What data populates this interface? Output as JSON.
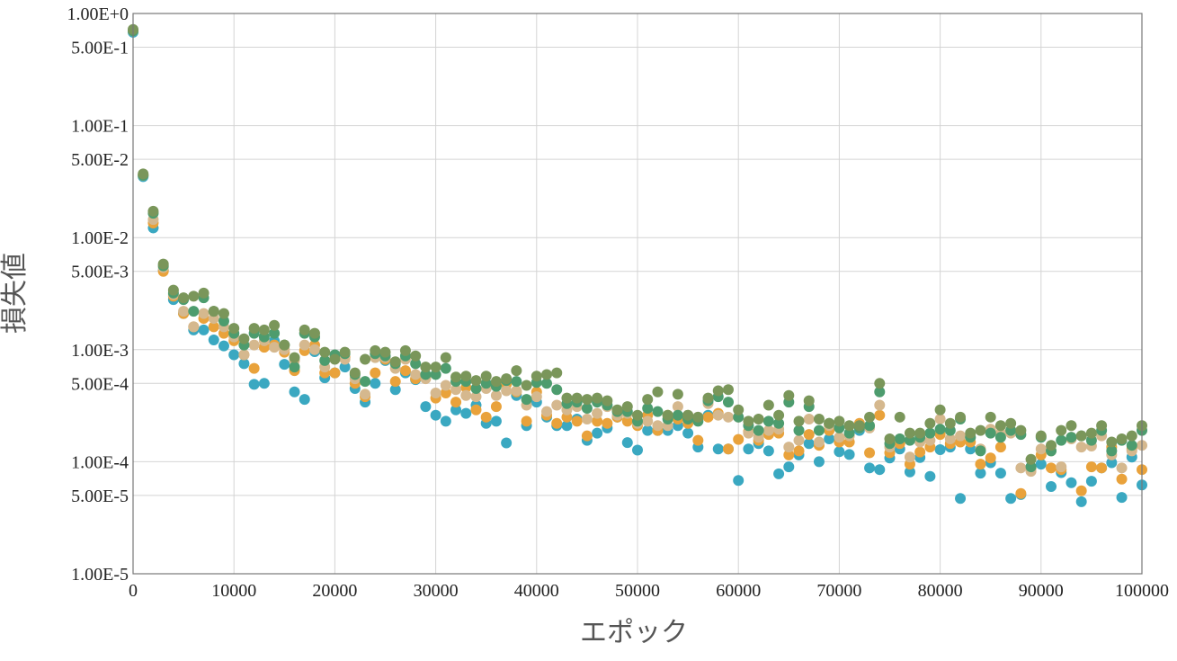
{
  "chart_data": {
    "type": "scatter",
    "title": "",
    "xlabel": "エポック",
    "ylabel": "損失値",
    "xlim": [
      0,
      100000
    ],
    "ylim": [
      1e-05,
      1
    ],
    "y_scale": "log",
    "grid": true,
    "legend": "none",
    "x_ticks": [
      {
        "value": 0,
        "label": "0"
      },
      {
        "value": 10000,
        "label": "10000"
      },
      {
        "value": 20000,
        "label": "20000"
      },
      {
        "value": 30000,
        "label": "30000"
      },
      {
        "value": 40000,
        "label": "40000"
      },
      {
        "value": 50000,
        "label": "50000"
      },
      {
        "value": 60000,
        "label": "60000"
      },
      {
        "value": 70000,
        "label": "70000"
      },
      {
        "value": 80000,
        "label": "80000"
      },
      {
        "value": 90000,
        "label": "90000"
      },
      {
        "value": 100000,
        "label": "100000"
      }
    ],
    "y_ticks": [
      {
        "value": 1,
        "label": "1.00E+0"
      },
      {
        "value": 0.5,
        "label": "5.00E-1"
      },
      {
        "value": 0.1,
        "label": "1.00E-1"
      },
      {
        "value": 0.05,
        "label": "5.00E-2"
      },
      {
        "value": 0.01,
        "label": "1.00E-2"
      },
      {
        "value": 0.005,
        "label": "5.00E-3"
      },
      {
        "value": 0.001,
        "label": "1.00E-3"
      },
      {
        "value": 0.0005,
        "label": "5.00E-4"
      },
      {
        "value": 0.0001,
        "label": "1.00E-4"
      },
      {
        "value": 5e-05,
        "label": "5.00E-5"
      },
      {
        "value": 1e-05,
        "label": "1.00E-5"
      }
    ],
    "x": [
      0,
      1000,
      2000,
      3000,
      4000,
      5000,
      6000,
      7000,
      8000,
      9000,
      10000,
      11000,
      12000,
      13000,
      14000,
      15000,
      16000,
      17000,
      18000,
      19000,
      20000,
      21000,
      22000,
      23000,
      24000,
      25000,
      26000,
      27000,
      28000,
      29000,
      30000,
      31000,
      32000,
      33000,
      34000,
      35000,
      36000,
      37000,
      38000,
      39000,
      40000,
      41000,
      42000,
      43000,
      44000,
      45000,
      46000,
      47000,
      48000,
      49000,
      50000,
      51000,
      52000,
      53000,
      54000,
      55000,
      56000,
      57000,
      58000,
      59000,
      60000,
      61000,
      62000,
      63000,
      64000,
      65000,
      66000,
      67000,
      68000,
      69000,
      70000,
      71000,
      72000,
      73000,
      74000,
      75000,
      76000,
      77000,
      78000,
      79000,
      80000,
      81000,
      82000,
      83000,
      84000,
      85000,
      86000,
      87000,
      88000,
      89000,
      90000,
      91000,
      92000,
      93000,
      94000,
      95000,
      96000,
      97000,
      98000,
      99000,
      100000
    ],
    "series": [
      {
        "color": "#3aa8c1",
        "values": [
          0.68,
          0.035,
          0.0122,
          0.0051,
          0.0028,
          0.0021,
          0.0015,
          0.0015,
          0.00122,
          0.00108,
          0.0009,
          0.00075,
          0.00049,
          0.0005,
          0.0012,
          0.00074,
          0.00042,
          0.00036,
          0.00096,
          0.00056,
          0.00062,
          0.0007,
          0.00045,
          0.00034,
          0.0005,
          0.0008,
          0.00044,
          0.00062,
          0.00054,
          0.00031,
          0.00026,
          0.00023,
          0.00029,
          0.00027,
          0.00032,
          0.00022,
          0.00023,
          0.000147,
          0.00039,
          0.00021,
          0.00034,
          0.00025,
          0.00021,
          0.00021,
          0.00024,
          0.000155,
          0.00018,
          0.0002,
          0.00025,
          0.000148,
          0.000127,
          0.00019,
          0.00019,
          0.00019,
          0.00021,
          0.00018,
          0.000135,
          0.00026,
          0.00013,
          0.00013,
          6.8e-05,
          0.00013,
          0.000145,
          0.000125,
          7.8e-05,
          9e-05,
          0.000115,
          0.000145,
          0.0001,
          0.00016,
          0.000123,
          0.000116,
          0.00019,
          8.8e-05,
          8.5e-05,
          0.000108,
          0.00013,
          8.1e-05,
          0.000109,
          7.4e-05,
          0.000128,
          0.000135,
          4.7e-05,
          0.00013,
          7.9e-05,
          9.8e-05,
          7.9e-05,
          4.7e-05,
          5.1e-05,
          9e-05,
          9.5e-05,
          6e-05,
          8e-05,
          6.5e-05,
          4.4e-05,
          6.7e-05,
          8.8e-05,
          9.8e-05,
          4.8e-05,
          0.00011,
          6.2e-05
        ]
      },
      {
        "color": "#e9a23b",
        "values": [
          0.7,
          0.036,
          0.0135,
          0.005,
          0.003,
          0.0021,
          0.0016,
          0.0019,
          0.0016,
          0.0014,
          0.0012,
          0.0009,
          0.00068,
          0.00105,
          0.0011,
          0.00095,
          0.00065,
          0.00098,
          0.0011,
          0.00062,
          0.00062,
          0.00085,
          0.0005,
          0.00038,
          0.00062,
          0.00082,
          0.00052,
          0.00065,
          0.00055,
          0.00058,
          0.00037,
          0.00041,
          0.00034,
          0.00046,
          0.00029,
          0.00025,
          0.00031,
          0.00049,
          0.00042,
          0.00023,
          0.00042,
          0.00026,
          0.00022,
          0.00025,
          0.00023,
          0.00017,
          0.00023,
          0.00022,
          0.00025,
          0.00023,
          0.00021,
          0.00026,
          0.00019,
          0.00026,
          0.00024,
          0.00022,
          0.000155,
          0.00025,
          0.00027,
          0.00013,
          0.000158,
          0.000185,
          0.000155,
          0.000175,
          0.00018,
          0.000115,
          0.000125,
          0.000175,
          0.00014,
          0.00019,
          0.00015,
          0.00015,
          0.00022,
          0.00012,
          0.00026,
          0.00012,
          0.000145,
          9.5e-05,
          0.000122,
          0.000135,
          0.000175,
          0.000145,
          0.00015,
          0.00015,
          9.5e-05,
          0.000108,
          0.000135,
          0.00019,
          5.2e-05,
          8.8e-05,
          0.000115,
          8.8e-05,
          8.5e-05,
          0.000165,
          5.5e-05,
          9e-05,
          8.8e-05,
          0.000135,
          7e-05,
          0.00013,
          8.5e-05
        ]
      },
      {
        "color": "#d5b88e",
        "values": [
          0.7,
          0.036,
          0.0145,
          0.0054,
          0.0031,
          0.0022,
          0.0016,
          0.0021,
          0.0019,
          0.0016,
          0.0013,
          0.0009,
          0.0011,
          0.0012,
          0.00105,
          0.001,
          0.0008,
          0.0011,
          0.001,
          0.0007,
          0.00085,
          0.00082,
          0.00055,
          0.0004,
          0.00085,
          0.00085,
          0.00068,
          0.00082,
          0.0006,
          0.00055,
          0.00041,
          0.00048,
          0.00044,
          0.00039,
          0.00038,
          0.00045,
          0.00039,
          0.00043,
          0.00043,
          0.00032,
          0.00038,
          0.00028,
          0.00032,
          0.00029,
          0.00031,
          0.00024,
          0.00027,
          0.00031,
          0.00026,
          0.00027,
          0.00022,
          0.00023,
          0.00021,
          0.00021,
          0.00031,
          0.00026,
          0.00025,
          0.00033,
          0.00026,
          0.00025,
          0.00025,
          0.00018,
          0.000165,
          0.00019,
          0.000195,
          0.000135,
          0.000155,
          0.00024,
          0.00015,
          0.00021,
          0.000165,
          0.00017,
          0.0002,
          0.0002,
          0.00032,
          0.000135,
          0.00016,
          0.00011,
          0.00015,
          0.000155,
          0.00024,
          0.00016,
          0.00017,
          0.000165,
          0.00013,
          0.000195,
          0.00018,
          0.00018,
          8.8e-05,
          8.2e-05,
          0.00013,
          0.000125,
          9e-05,
          0.00016,
          0.000135,
          0.000138,
          0.00017,
          0.000115,
          8.8e-05,
          0.000125,
          0.00014
        ]
      },
      {
        "color": "#4d9c6e",
        "values": [
          0.7,
          0.036,
          0.0165,
          0.0056,
          0.0032,
          0.0028,
          0.0022,
          0.0029,
          0.0022,
          0.0018,
          0.0014,
          0.0011,
          0.0014,
          0.0013,
          0.0014,
          0.0011,
          0.0007,
          0.0014,
          0.0013,
          0.0008,
          0.0009,
          0.00092,
          0.0006,
          0.00052,
          0.00092,
          0.00088,
          0.00075,
          0.00088,
          0.00075,
          0.0006,
          0.0006,
          0.00068,
          0.00052,
          0.00052,
          0.00045,
          0.0005,
          0.00047,
          0.00053,
          0.00052,
          0.00036,
          0.00051,
          0.0005,
          0.00044,
          0.00033,
          0.00034,
          0.0003,
          0.00034,
          0.00032,
          0.00028,
          0.00028,
          0.00023,
          0.0003,
          0.00028,
          0.00024,
          0.00026,
          0.00024,
          0.00023,
          0.00035,
          0.00038,
          0.00034,
          0.00025,
          0.00021,
          0.00019,
          0.00023,
          0.00022,
          0.00034,
          0.00019,
          0.00031,
          0.00019,
          0.00022,
          0.0002,
          0.00018,
          0.0002,
          0.00021,
          0.00042,
          0.000145,
          0.00016,
          0.000155,
          0.000165,
          0.00018,
          0.000195,
          0.00019,
          0.00024,
          0.000165,
          0.000125,
          0.00018,
          0.000165,
          0.00019,
          0.000175,
          9e-05,
          0.000165,
          0.000125,
          0.000155,
          0.000165,
          0.00017,
          0.000155,
          0.00019,
          0.000125,
          0.000155,
          0.00014,
          0.00019
        ]
      },
      {
        "color": "#7a965a",
        "values": [
          0.72,
          0.037,
          0.0172,
          0.0058,
          0.0034,
          0.0029,
          0.003,
          0.0032,
          0.0022,
          0.0021,
          0.00155,
          0.00125,
          0.00155,
          0.0015,
          0.00165,
          0.0011,
          0.00085,
          0.0015,
          0.0014,
          0.00095,
          0.00082,
          0.00095,
          0.00062,
          0.00082,
          0.00098,
          0.00095,
          0.00078,
          0.00098,
          0.00088,
          0.0007,
          0.0007,
          0.00085,
          0.00057,
          0.00058,
          0.00053,
          0.00058,
          0.00052,
          0.00055,
          0.00065,
          0.00048,
          0.00058,
          0.0006,
          0.00062,
          0.00037,
          0.00037,
          0.00036,
          0.00037,
          0.00035,
          0.00029,
          0.00031,
          0.00026,
          0.00036,
          0.00042,
          0.00026,
          0.0004,
          0.00026,
          0.00025,
          0.00037,
          0.00043,
          0.00044,
          0.00029,
          0.00023,
          0.00024,
          0.00032,
          0.00026,
          0.00039,
          0.00023,
          0.00035,
          0.00024,
          0.00022,
          0.00023,
          0.00021,
          0.00021,
          0.00025,
          0.0005,
          0.00016,
          0.00025,
          0.00018,
          0.00018,
          0.00022,
          0.00029,
          0.00022,
          0.00025,
          0.00018,
          0.00019,
          0.00025,
          0.00021,
          0.00022,
          0.00019,
          0.000105,
          0.00017,
          0.00014,
          0.00019,
          0.00021,
          0.00017,
          0.00018,
          0.00021,
          0.00015,
          0.00016,
          0.00017,
          0.00021
        ]
      }
    ]
  }
}
